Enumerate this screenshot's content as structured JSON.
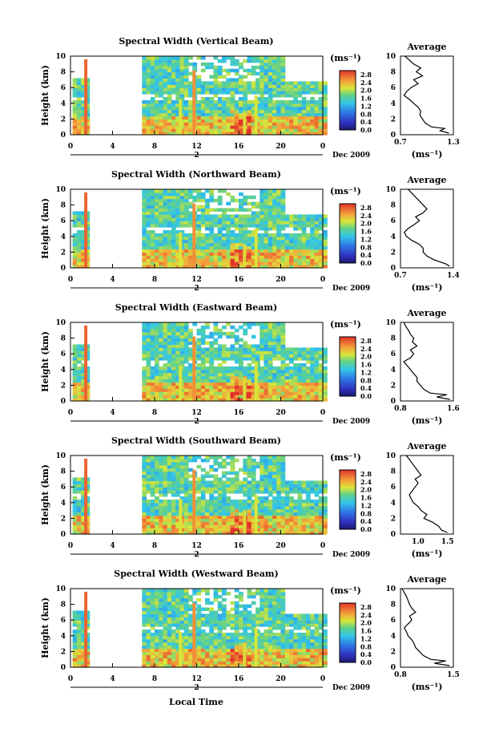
{
  "figure": {
    "xlabel": "Local Time",
    "date_label": "Dec 2009",
    "day_marker": "2",
    "ylabel": "Height (km)",
    "avg_title": "Average",
    "avg_xlabel": "(ms⁻¹)",
    "colorbar_unit": "(ms⁻¹)"
  },
  "chart_data": [
    {
      "type": "heatmap",
      "title": "Spectral Width (Vertical Beam)",
      "xlabel": "Local Time",
      "ylabel": "Height (km)",
      "x_ticks": [
        "0",
        "4",
        "8",
        "12",
        "16",
        "20",
        "0"
      ],
      "y_ticks": [
        "0",
        "2",
        "4",
        "6",
        "8",
        "10"
      ],
      "xlim": [
        0,
        24
      ],
      "ylim": [
        0,
        10
      ],
      "colorbar": {
        "ticks": [
          "0.0",
          "0.4",
          "0.8",
          "1.2",
          "1.6",
          "2.0",
          "2.4",
          "2.8"
        ],
        "range": [
          0,
          3.0
        ]
      },
      "average_profile": {
        "xlabel": "(ms⁻¹)",
        "x_ticks": [
          "0.7",
          "1.3"
        ],
        "xlim": [
          0.7,
          1.3
        ],
        "ylim": [
          0,
          10
        ],
        "height": [
          0.2,
          0.5,
          0.8,
          1.0,
          1.5,
          2.0,
          2.5,
          3.0,
          3.5,
          4.0,
          4.5,
          5.0,
          5.5,
          6.0,
          6.5,
          7.0,
          7.5,
          8.0,
          8.5,
          9.0,
          9.5,
          10.0
        ],
        "value": [
          1.25,
          1.15,
          1.2,
          1.05,
          0.98,
          0.95,
          0.92,
          0.93,
          0.9,
          0.85,
          0.8,
          0.74,
          0.77,
          0.82,
          0.9,
          0.85,
          0.95,
          0.88,
          0.93,
          0.85,
          0.8,
          0.75
        ]
      }
    },
    {
      "type": "heatmap",
      "title": "Spectral Width (Northward Beam)",
      "xlabel": "Local Time",
      "ylabel": "Height (km)",
      "x_ticks": [
        "0",
        "4",
        "8",
        "12",
        "16",
        "20",
        "0"
      ],
      "y_ticks": [
        "0",
        "2",
        "4",
        "6",
        "8",
        "10"
      ],
      "xlim": [
        0,
        24
      ],
      "ylim": [
        0,
        10
      ],
      "colorbar": {
        "ticks": [
          "0.0",
          "0.4",
          "0.8",
          "1.2",
          "1.6",
          "2.0",
          "2.4",
          "2.8"
        ],
        "range": [
          0,
          3.0
        ]
      },
      "average_profile": {
        "xlabel": "(ms⁻¹)",
        "x_ticks": [
          "0.7",
          "1.4"
        ],
        "xlim": [
          0.7,
          1.4
        ],
        "ylim": [
          0,
          10
        ],
        "height": [
          0.2,
          0.5,
          1.0,
          1.5,
          2.0,
          2.5,
          3.0,
          3.5,
          4.0,
          4.5,
          5.0,
          5.5,
          6.0,
          6.5,
          7.0,
          7.5,
          8.0,
          8.5,
          9.0,
          9.5,
          10.0
        ],
        "value": [
          1.35,
          1.3,
          1.15,
          1.05,
          1.0,
          1.0,
          0.95,
          0.85,
          0.78,
          0.75,
          0.8,
          0.88,
          0.95,
          0.9,
          1.0,
          1.05,
          1.0,
          0.95,
          0.9,
          0.85,
          0.8
        ]
      }
    },
    {
      "type": "heatmap",
      "title": "Spectral Width (Eastward Beam)",
      "xlabel": "Local Time",
      "ylabel": "Height (km)",
      "x_ticks": [
        "0",
        "4",
        "8",
        "12",
        "16",
        "20",
        "0"
      ],
      "y_ticks": [
        "0",
        "2",
        "4",
        "6",
        "8",
        "10"
      ],
      "xlim": [
        0,
        24
      ],
      "ylim": [
        0,
        10
      ],
      "colorbar": {
        "ticks": [
          "0.0",
          "0.4",
          "0.8",
          "1.2",
          "1.6",
          "2.0",
          "2.4",
          "2.8"
        ],
        "range": [
          0,
          3.0
        ]
      },
      "average_profile": {
        "xlabel": "(ms⁻¹)",
        "x_ticks": [
          "0.8",
          "1.6"
        ],
        "xlim": [
          0.8,
          1.6
        ],
        "ylim": [
          0,
          10
        ],
        "height": [
          0.2,
          0.5,
          0.8,
          1.0,
          1.5,
          2.0,
          2.5,
          3.0,
          3.5,
          4.0,
          4.5,
          5.0,
          5.5,
          6.0,
          6.5,
          7.0,
          7.5,
          8.0,
          8.5,
          9.0,
          9.5,
          10.0
        ],
        "value": [
          1.55,
          1.35,
          1.5,
          1.25,
          1.15,
          1.1,
          1.05,
          1.05,
          1.0,
          0.95,
          0.9,
          0.85,
          0.95,
          1.0,
          0.95,
          1.05,
          0.98,
          1.0,
          0.95,
          0.92,
          0.88,
          0.85
        ]
      }
    },
    {
      "type": "heatmap",
      "title": "Spectral Width (Southward Beam)",
      "xlabel": "Local Time",
      "ylabel": "Height (km)",
      "x_ticks": [
        "0",
        "4",
        "8",
        "12",
        "16",
        "20",
        "0"
      ],
      "y_ticks": [
        "0",
        "2",
        "4",
        "6",
        "8",
        "10"
      ],
      "xlim": [
        0,
        24
      ],
      "ylim": [
        0,
        10
      ],
      "colorbar": {
        "ticks": [
          "0.0",
          "0.4",
          "0.8",
          "1.2",
          "1.6",
          "2.0",
          "2.4",
          "2.8"
        ],
        "range": [
          0,
          3.0
        ]
      },
      "average_profile": {
        "xlabel": "(ms⁻¹)",
        "x_ticks": [
          "1.0",
          "1.5"
        ],
        "xlim": [
          0.7,
          1.6
        ],
        "ylim": [
          0,
          10
        ],
        "height": [
          0.2,
          0.5,
          1.0,
          1.5,
          2.0,
          2.5,
          3.0,
          3.5,
          4.0,
          4.5,
          5.0,
          5.5,
          6.0,
          6.5,
          7.0,
          7.5,
          8.0,
          8.5,
          9.0,
          9.5,
          10.0
        ],
        "value": [
          1.5,
          1.4,
          1.35,
          1.25,
          1.1,
          1.15,
          1.05,
          1.0,
          0.92,
          0.88,
          0.85,
          0.9,
          0.95,
          1.0,
          0.95,
          1.05,
          1.0,
          0.95,
          0.9,
          0.85,
          0.8
        ]
      }
    },
    {
      "type": "heatmap",
      "title": "Spectral Width (Westward Beam)",
      "xlabel": "Local Time",
      "ylabel": "Height (km)",
      "x_ticks": [
        "0",
        "4",
        "8",
        "12",
        "16",
        "20",
        "0"
      ],
      "y_ticks": [
        "0",
        "2",
        "4",
        "6",
        "8",
        "10"
      ],
      "xlim": [
        0,
        24
      ],
      "ylim": [
        0,
        10
      ],
      "colorbar": {
        "ticks": [
          "0.0",
          "0.4",
          "0.8",
          "1.2",
          "1.6",
          "2.0",
          "2.4",
          "2.8"
        ],
        "range": [
          0,
          3.0
        ]
      },
      "average_profile": {
        "xlabel": "(ms⁻¹)",
        "x_ticks": [
          "0.8",
          "1.5"
        ],
        "xlim": [
          0.8,
          1.5
        ],
        "ylim": [
          0,
          10
        ],
        "height": [
          0.2,
          0.5,
          0.8,
          1.0,
          1.5,
          2.0,
          2.5,
          3.0,
          3.5,
          4.0,
          4.5,
          5.0,
          5.5,
          6.0,
          6.5,
          7.0,
          7.5,
          8.0,
          8.5,
          9.0,
          9.5,
          10.0
        ],
        "value": [
          1.45,
          1.25,
          1.4,
          1.2,
          1.1,
          1.05,
          1.0,
          0.98,
          0.95,
          0.9,
          0.88,
          0.85,
          0.9,
          0.95,
          0.92,
          1.0,
          0.95,
          0.92,
          0.9,
          0.88,
          0.85,
          0.82
        ]
      }
    }
  ]
}
